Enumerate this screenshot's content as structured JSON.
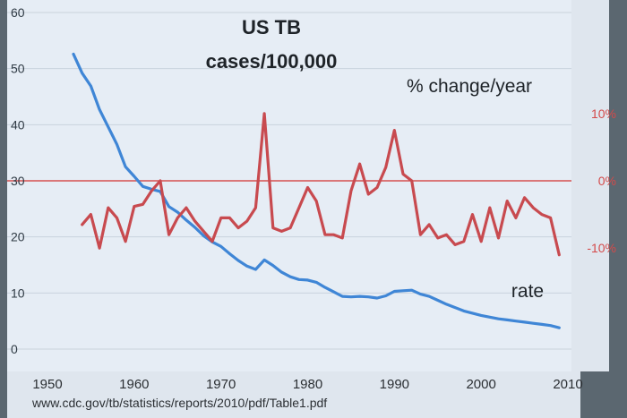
{
  "colors": {
    "plot_background": "#e6edf5",
    "rate_line": "#3f86d6",
    "pct_line": "#c84a4f",
    "zero_line": "#d55050",
    "grid": "#c9d2dc",
    "frame_dark": "#5b6770"
  },
  "source": "www.cdc.gov/tb/statistics/reports/2010/pdf/Table1.pdf",
  "chart_data": {
    "type": "line",
    "title_lines": [
      "US TB",
      "cases/100,000"
    ],
    "right_axis_title": "% change/year",
    "series_labels": {
      "rate": "rate"
    },
    "x_ticks": [
      "1950",
      "1960",
      "1970",
      "1980",
      "1990",
      "2000",
      "2010"
    ],
    "xlim": [
      1950,
      2010
    ],
    "left_ticks": [
      "0",
      "10",
      "20",
      "30",
      "40",
      "50",
      "60"
    ],
    "ylim_left": [
      0,
      60
    ],
    "right_ticks": [
      {
        "label": "10%",
        "value": 10
      },
      {
        "label": "0%",
        "value": 0
      },
      {
        "label": "-10%",
        "value": -10
      }
    ],
    "ylim_right": [
      -25,
      25
    ],
    "grid": true,
    "series": [
      {
        "name": "rate",
        "axis": "left",
        "x": [
          1953,
          1954,
          1955,
          1956,
          1957,
          1958,
          1959,
          1960,
          1961,
          1962,
          1963,
          1964,
          1965,
          1966,
          1967,
          1968,
          1969,
          1970,
          1971,
          1972,
          1973,
          1974,
          1975,
          1976,
          1977,
          1978,
          1979,
          1980,
          1981,
          1982,
          1983,
          1984,
          1985,
          1986,
          1987,
          1988,
          1989,
          1990,
          1991,
          1992,
          1993,
          1994,
          1995,
          1996,
          1997,
          1998,
          1999,
          2000,
          2001,
          2002,
          2003,
          2004,
          2005,
          2006,
          2007,
          2008,
          2009
        ],
        "y": [
          52.6,
          49.2,
          46.9,
          42.7,
          39.6,
          36.5,
          32.5,
          30.8,
          29.0,
          28.5,
          28.1,
          25.4,
          24.4,
          23.0,
          21.7,
          20.2,
          19.1,
          18.3,
          17.0,
          15.8,
          14.8,
          14.2,
          15.9,
          14.9,
          13.7,
          12.9,
          12.4,
          12.3,
          11.9,
          11.0,
          10.2,
          9.4,
          9.3,
          9.4,
          9.3,
          9.1,
          9.5,
          10.3,
          10.4,
          10.5,
          9.8,
          9.4,
          8.7,
          8.0,
          7.4,
          6.8,
          6.4,
          6.0,
          5.7,
          5.4,
          5.2,
          5.0,
          4.8,
          4.6,
          4.4,
          4.2,
          3.8
        ]
      },
      {
        "name": "% change/year",
        "axis": "right",
        "x": [
          1954,
          1955,
          1956,
          1957,
          1958,
          1959,
          1960,
          1961,
          1962,
          1963,
          1964,
          1965,
          1966,
          1967,
          1968,
          1969,
          1970,
          1971,
          1972,
          1973,
          1974,
          1975,
          1976,
          1977,
          1978,
          1979,
          1980,
          1981,
          1982,
          1983,
          1984,
          1985,
          1986,
          1987,
          1988,
          1989,
          1990,
          1991,
          1992,
          1993,
          1994,
          1995,
          1996,
          1997,
          1998,
          1999,
          2000,
          2001,
          2002,
          2003,
          2004,
          2005,
          2006,
          2007,
          2008,
          2009
        ],
        "y": [
          -6.5,
          -5.0,
          -10.0,
          -4.0,
          -5.5,
          -9.0,
          -3.8,
          -3.5,
          -1.5,
          0.0,
          -8.0,
          -5.5,
          -4.0,
          -6.0,
          -7.5,
          -9.0,
          -5.5,
          -5.5,
          -7.0,
          -6.0,
          -4.0,
          10.0,
          -7.0,
          -7.5,
          -7.0,
          -4.0,
          -1.0,
          -3.0,
          -8.0,
          -8.0,
          -8.5,
          -1.5,
          2.5,
          -2.0,
          -1.0,
          2.0,
          7.5,
          1.0,
          0.0,
          -8.0,
          -6.5,
          -8.5,
          -8.0,
          -9.5,
          -9.0,
          -5.0,
          -9.0,
          -4.0,
          -8.5,
          -3.0,
          -5.5,
          -2.5,
          -4.0,
          -5.0,
          -5.5,
          -11.0
        ]
      }
    ]
  }
}
